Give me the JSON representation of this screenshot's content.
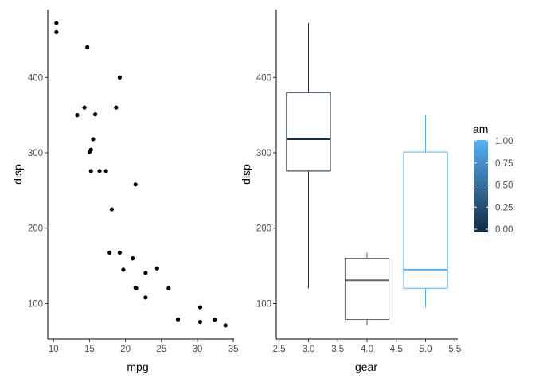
{
  "chart_data": [
    {
      "type": "scatter",
      "title": "",
      "xlabel": "mpg",
      "ylabel": "disp",
      "xlim": [
        9.2,
        35.1
      ],
      "ylim": [
        53,
        490
      ],
      "xticks": [
        10,
        15,
        20,
        25,
        30,
        35
      ],
      "yticks": [
        100,
        200,
        300,
        400
      ],
      "grid": false,
      "point_color": "#000000",
      "points": [
        {
          "x": 21.0,
          "y": 160
        },
        {
          "x": 21.0,
          "y": 160
        },
        {
          "x": 22.8,
          "y": 108
        },
        {
          "x": 21.4,
          "y": 258
        },
        {
          "x": 18.7,
          "y": 360
        },
        {
          "x": 18.1,
          "y": 225
        },
        {
          "x": 14.3,
          "y": 360
        },
        {
          "x": 24.4,
          "y": 146.7
        },
        {
          "x": 22.8,
          "y": 140.8
        },
        {
          "x": 19.2,
          "y": 167.6
        },
        {
          "x": 17.8,
          "y": 167.6
        },
        {
          "x": 16.4,
          "y": 275.8
        },
        {
          "x": 17.3,
          "y": 275.8
        },
        {
          "x": 15.2,
          "y": 275.8
        },
        {
          "x": 10.4,
          "y": 472
        },
        {
          "x": 10.4,
          "y": 460
        },
        {
          "x": 14.7,
          "y": 440
        },
        {
          "x": 32.4,
          "y": 78.7
        },
        {
          "x": 30.4,
          "y": 75.7
        },
        {
          "x": 33.9,
          "y": 71.1
        },
        {
          "x": 21.5,
          "y": 120.1
        },
        {
          "x": 15.5,
          "y": 318
        },
        {
          "x": 15.2,
          "y": 304
        },
        {
          "x": 13.3,
          "y": 350
        },
        {
          "x": 19.2,
          "y": 400
        },
        {
          "x": 27.3,
          "y": 79
        },
        {
          "x": 26.0,
          "y": 120.3
        },
        {
          "x": 30.4,
          "y": 95.1
        },
        {
          "x": 15.8,
          "y": 351
        },
        {
          "x": 19.7,
          "y": 145
        },
        {
          "x": 15.0,
          "y": 301
        },
        {
          "x": 21.4,
          "y": 121
        }
      ]
    },
    {
      "type": "box",
      "title": "",
      "xlabel": "gear",
      "ylabel": "disp",
      "xlim": [
        2.45,
        5.55
      ],
      "ylim": [
        53,
        490
      ],
      "xticks": [
        "2.5",
        "3.0",
        "3.5",
        "4.0",
        "4.5",
        "5.0",
        "5.5"
      ],
      "yticks": [
        100,
        200,
        300,
        400
      ],
      "grid": false,
      "boxes": [
        {
          "gear": 3,
          "am": 0,
          "min": 120.1,
          "q1": 275.8,
          "median": 318,
          "q3": 380,
          "max": 472,
          "color": "#132B43"
        },
        {
          "gear": 4,
          "am": 0.33,
          "min": 71.1,
          "q1": 78.8,
          "median": 130.9,
          "q3": 160,
          "max": 167.6,
          "color": "#666666"
        },
        {
          "gear": 5,
          "am": 1,
          "min": 95.1,
          "q1": 120.3,
          "median": 145,
          "q3": 301,
          "max": 351,
          "color": "#56B1F7"
        }
      ],
      "legend": {
        "title": "am",
        "placement": "right",
        "ticks": [
          "1.00",
          "0.75",
          "0.50",
          "0.25",
          "0.00"
        ],
        "low_color": "#132B43",
        "high_color": "#56B1F7"
      }
    }
  ]
}
